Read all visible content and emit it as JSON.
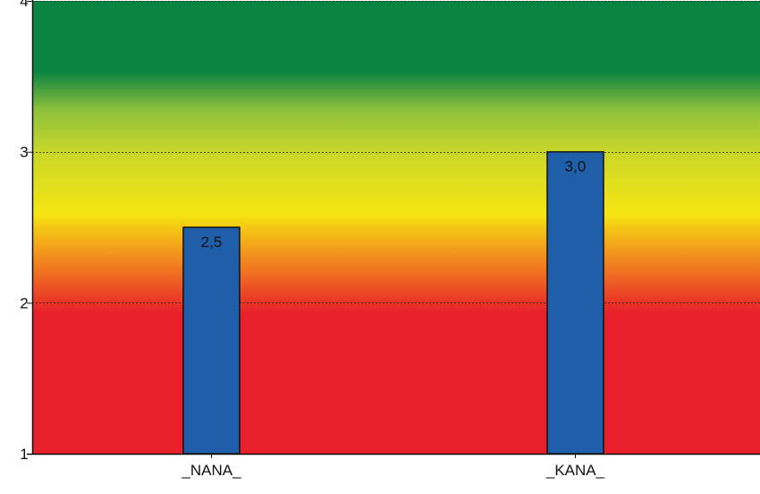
{
  "chart_data": {
    "type": "bar",
    "categories": [
      "_NANA_",
      "_KANA_"
    ],
    "values": [
      2.5,
      3.0
    ],
    "value_labels": [
      "2,5",
      "3,0"
    ],
    "ylim": [
      1,
      4
    ],
    "y_ticks": [
      1,
      2,
      3,
      4
    ],
    "y_tick_labels": [
      "1",
      "2",
      "3",
      "4"
    ],
    "grid": "horizontal dotted",
    "legend": "none",
    "bar_color": "#1f5faa",
    "background_bands": {
      "red": "#e8202a",
      "orange": "#f07820",
      "yellow": "#f5e612",
      "light_green": "#8cc03c",
      "dark_green": "#0a8441"
    }
  }
}
